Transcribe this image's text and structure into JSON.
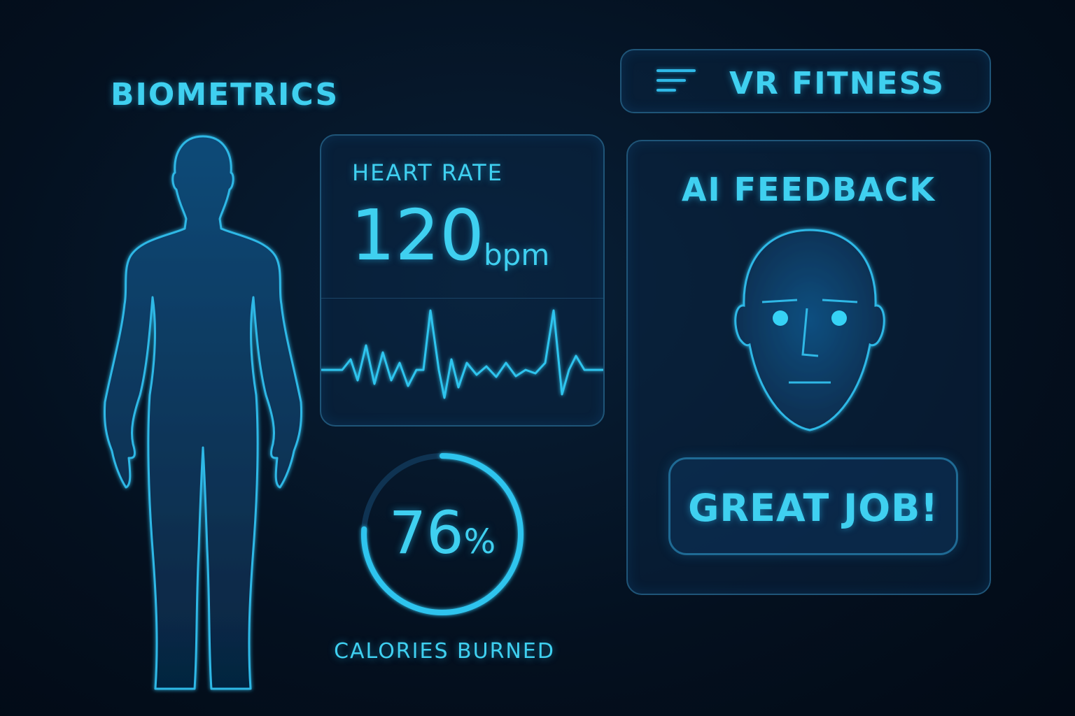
{
  "biometrics": {
    "title": "BIOMETRICS"
  },
  "header": {
    "title": "VR FITNESS",
    "menu_icon": "hamburger-icon"
  },
  "heart_rate": {
    "label": "HEART RATE",
    "value": "120",
    "unit": "bpm"
  },
  "calories": {
    "percent_text": "76",
    "percent_sign": "%",
    "progress": 0.76,
    "label": "CALORIES BURNED"
  },
  "ai_feedback": {
    "title": "AI FEEDBACK",
    "avatar_icon": "face-icon",
    "message": "GREAT JOB!"
  },
  "colors": {
    "accent": "#3fd0f0",
    "panel_border": "#1f5578",
    "background": "#04101f"
  }
}
